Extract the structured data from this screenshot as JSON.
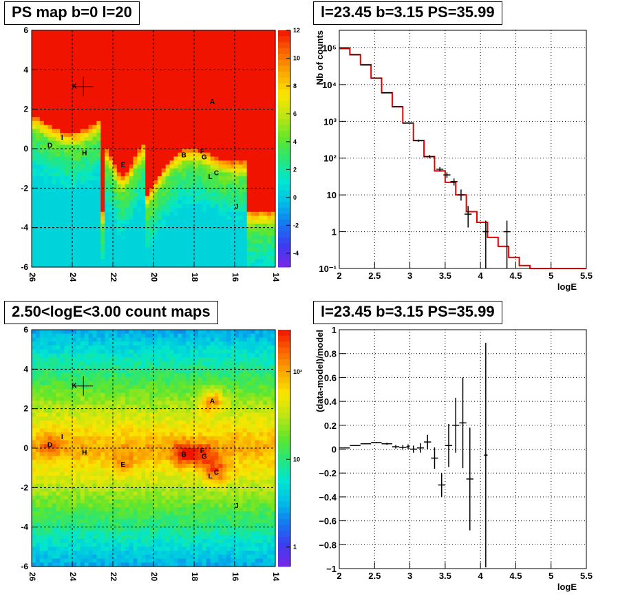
{
  "chart_data": [
    {
      "type": "heatmap",
      "title": "PS map b=0 l=20",
      "xlim": [
        26,
        14
      ],
      "ylim": [
        -6,
        6
      ],
      "xticks": [
        "26",
        "24",
        "22",
        "20",
        "18",
        "16",
        "14"
      ],
      "yticks": [
        "6",
        "4",
        "2",
        "0",
        "-2",
        "-4",
        "-6"
      ],
      "colorbar_ticks": [
        "12",
        "10",
        "8",
        "6",
        "4",
        "2",
        "0",
        "-2",
        "-4"
      ],
      "colorbar_range": [
        -5,
        12
      ],
      "grid": true,
      "sources": [
        {
          "label": "A",
          "l": 17.1,
          "b": 2.4
        },
        {
          "label": "B",
          "l": 18.5,
          "b": -0.3
        },
        {
          "label": "C",
          "l": 16.9,
          "b": -1.2
        },
        {
          "label": "D",
          "l": 25.1,
          "b": 0.2
        },
        {
          "label": "E",
          "l": 21.5,
          "b": -0.8
        },
        {
          "label": "F",
          "l": 17.6,
          "b": -0.1
        },
        {
          "label": "G",
          "l": 17.5,
          "b": -0.4
        },
        {
          "label": "H",
          "l": 23.4,
          "b": -0.2
        },
        {
          "label": "I",
          "l": 24.5,
          "b": 0.6
        },
        {
          "label": "J",
          "l": 15.9,
          "b": -2.9
        },
        {
          "label": "K",
          "l": 23.9,
          "b": 3.2
        },
        {
          "label": "L",
          "l": 17.2,
          "b": -1.4
        }
      ],
      "cross": {
        "l": 23.45,
        "b": 3.15
      }
    },
    {
      "type": "line",
      "title": "l=23.45 b=3.15 PS=35.99",
      "xlabel": "logE",
      "ylabel": "Nb of counts",
      "xlim": [
        2,
        5.5
      ],
      "ylim": [
        0.1,
        300000
      ],
      "log_y": true,
      "xticks": [
        "2",
        "2.5",
        "3",
        "3.5",
        "4",
        "4.5",
        "5",
        "5.5"
      ],
      "yticks": [
        {
          "label": "10⁻¹",
          "value": 0.1
        },
        {
          "label": "1",
          "value": 1
        },
        {
          "label": "10",
          "value": 10
        },
        {
          "label": "10²",
          "value": 100
        },
        {
          "label": "10³",
          "value": 1000
        },
        {
          "label": "10⁴",
          "value": 10000
        },
        {
          "label": "10⁵",
          "value": 100000
        }
      ],
      "grid": true,
      "model_step": {
        "color": "#e00000",
        "edges": [
          2.0,
          2.15,
          2.3,
          2.45,
          2.6,
          2.75,
          2.9,
          3.05,
          3.2,
          3.35,
          3.5,
          3.65,
          3.8,
          3.95,
          4.1,
          4.25,
          4.4,
          4.55,
          4.7,
          4.85,
          5.0,
          5.15,
          5.3,
          5.5
        ],
        "values": [
          95000,
          65000,
          35000,
          15000,
          6000,
          2500,
          900,
          300,
          110,
          45,
          22,
          10,
          3.5,
          1.8,
          0.7,
          0.4,
          0.2,
          0.12,
          0.1,
          0.1,
          0.1,
          0.1,
          0.1
        ]
      },
      "data_points": [
        {
          "x": 2.075,
          "y": 100000,
          "xerr": 0.075,
          "ylo": 100000,
          "yhi": 100000
        },
        {
          "x": 2.225,
          "y": 65000,
          "xerr": 0.075,
          "ylo": 65000,
          "yhi": 65000
        },
        {
          "x": 2.375,
          "y": 34000,
          "xerr": 0.075,
          "ylo": 34000,
          "yhi": 34000
        },
        {
          "x": 2.525,
          "y": 15000,
          "xerr": 0.075,
          "ylo": 15000,
          "yhi": 15000
        },
        {
          "x": 2.675,
          "y": 6000,
          "xerr": 0.075,
          "ylo": 6000,
          "yhi": 6000
        },
        {
          "x": 2.825,
          "y": 2500,
          "xerr": 0.075,
          "ylo": 2500,
          "yhi": 2500
        },
        {
          "x": 2.975,
          "y": 900,
          "xerr": 0.075,
          "ylo": 900,
          "yhi": 900
        },
        {
          "x": 3.125,
          "y": 300,
          "xerr": 0.075,
          "ylo": 280,
          "yhi": 320
        },
        {
          "x": 3.275,
          "y": 110,
          "xerr": 0.075,
          "ylo": 98,
          "yhi": 122
        },
        {
          "x": 3.425,
          "y": 50,
          "xerr": 0.05,
          "ylo": 43,
          "yhi": 57
        },
        {
          "x": 3.525,
          "y": 35,
          "xerr": 0.05,
          "ylo": 29,
          "yhi": 41
        },
        {
          "x": 3.625,
          "y": 23,
          "xerr": 0.05,
          "ylo": 18,
          "yhi": 28
        },
        {
          "x": 3.725,
          "y": 10,
          "xerr": 0.05,
          "ylo": 7,
          "yhi": 14
        },
        {
          "x": 3.825,
          "y": 3,
          "xerr": 0.05,
          "ylo": 1.3,
          "yhi": 5
        },
        {
          "x": 4.075,
          "y": 1,
          "xerr": 0.0,
          "ylo": 0.1,
          "yhi": 2
        },
        {
          "x": 4.375,
          "y": 1,
          "xerr": 0.05,
          "ylo": 0.1,
          "yhi": 2
        }
      ]
    },
    {
      "type": "heatmap",
      "title": "2.50<logE<3.00 count maps",
      "xlim": [
        26,
        14
      ],
      "ylim": [
        -6,
        6
      ],
      "xticks": [
        "26",
        "24",
        "22",
        "20",
        "18",
        "16",
        "14"
      ],
      "yticks": [
        "6",
        "4",
        "2",
        "0",
        "-2",
        "-4",
        "-6"
      ],
      "colorbar_ticks": [
        {
          "label": "10²",
          "value": 100
        },
        {
          "label": "10",
          "value": 10
        },
        {
          "label": "1",
          "value": 1
        }
      ],
      "colorbar_log_range": [
        0.6,
        300
      ],
      "grid": true,
      "sources": [
        {
          "label": "A",
          "l": 17.1,
          "b": 2.4
        },
        {
          "label": "B",
          "l": 18.5,
          "b": -0.3
        },
        {
          "label": "C",
          "l": 16.9,
          "b": -1.2
        },
        {
          "label": "D",
          "l": 25.1,
          "b": 0.2
        },
        {
          "label": "E",
          "l": 21.5,
          "b": -0.8
        },
        {
          "label": "F",
          "l": 17.6,
          "b": -0.1
        },
        {
          "label": "G",
          "l": 17.5,
          "b": -0.4
        },
        {
          "label": "H",
          "l": 23.4,
          "b": -0.2
        },
        {
          "label": "I",
          "l": 24.5,
          "b": 0.6
        },
        {
          "label": "J",
          "l": 15.9,
          "b": -2.9
        },
        {
          "label": "K",
          "l": 23.9,
          "b": 3.2
        },
        {
          "label": "L",
          "l": 17.2,
          "b": -1.4
        }
      ],
      "cross": {
        "l": 23.45,
        "b": 3.15
      }
    },
    {
      "type": "scatter",
      "title": "l=23.45 b=3.15 PS=35.99",
      "xlabel": "logE",
      "ylabel": "(data-model)/model",
      "xlim": [
        2,
        5.5
      ],
      "ylim": [
        -1,
        1
      ],
      "xticks": [
        "2",
        "2.5",
        "3",
        "3.5",
        "4",
        "4.5",
        "5",
        "5.5"
      ],
      "yticks": [
        "1",
        "0.8",
        "0.6",
        "0.4",
        "0.2",
        "0",
        "-0.2",
        "-0.4",
        "-0.6",
        "-0.8",
        "-1"
      ],
      "grid": true,
      "data_points": [
        {
          "x": 2.075,
          "y": 0.01,
          "xerr": 0.075,
          "yerr": 0.003
        },
        {
          "x": 2.225,
          "y": 0.03,
          "xerr": 0.075,
          "yerr": 0.004
        },
        {
          "x": 2.375,
          "y": 0.045,
          "xerr": 0.075,
          "yerr": 0.005
        },
        {
          "x": 2.525,
          "y": 0.055,
          "xerr": 0.075,
          "yerr": 0.006
        },
        {
          "x": 2.675,
          "y": 0.045,
          "xerr": 0.075,
          "yerr": 0.01
        },
        {
          "x": 2.8,
          "y": 0.02,
          "xerr": 0.05,
          "yerr": 0.015
        },
        {
          "x": 2.9,
          "y": 0.015,
          "xerr": 0.05,
          "yerr": 0.02
        },
        {
          "x": 2.975,
          "y": 0.02,
          "xerr": 0.025,
          "yerr": 0.02
        },
        {
          "x": 3.05,
          "y": 0.0,
          "xerr": 0.05,
          "yerr": 0.03
        },
        {
          "x": 3.15,
          "y": 0.01,
          "xerr": 0.05,
          "yerr": 0.04
        },
        {
          "x": 3.25,
          "y": 0.06,
          "xerr": 0.05,
          "yerr": 0.06
        },
        {
          "x": 3.35,
          "y": -0.075,
          "xerr": 0.05,
          "yerr": 0.09
        },
        {
          "x": 3.45,
          "y": -0.3,
          "xerr": 0.05,
          "yerr": 0.1
        },
        {
          "x": 3.55,
          "y": 0.03,
          "xerr": 0.05,
          "yerr": 0.18
        },
        {
          "x": 3.65,
          "y": 0.2,
          "xerr": 0.05,
          "yerr": 0.23
        },
        {
          "x": 3.75,
          "y": 0.22,
          "xerr": 0.05,
          "yerr": 0.38
        },
        {
          "x": 3.85,
          "y": -0.25,
          "xerr": 0.05,
          "yerr": 0.43
        },
        {
          "x": 4.075,
          "y": -0.05,
          "xerr": 0.025,
          "yerr": 0.94
        }
      ]
    }
  ]
}
